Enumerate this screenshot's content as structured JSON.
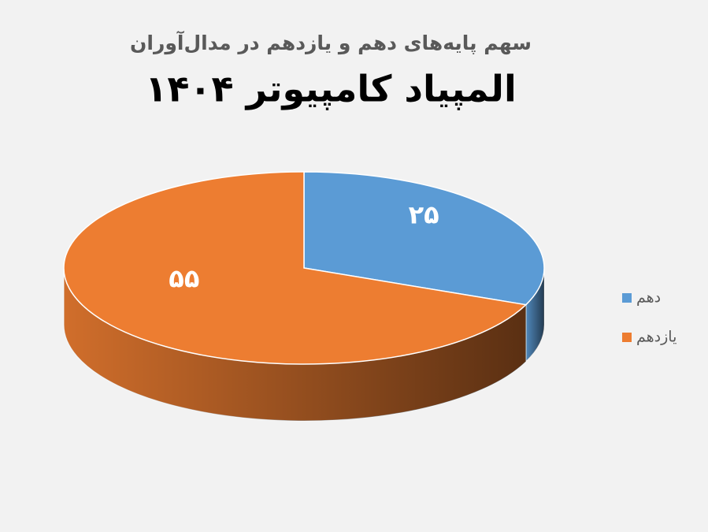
{
  "chart_data": {
    "type": "pie",
    "subtitle": "سهم پایه‌های دهم و یازدهم در مدال‌آوران",
    "title": "المپیاد کامپیوتر ۱۴۰۴",
    "categories": [
      "دهم",
      "یازدهم"
    ],
    "values": [
      25,
      55
    ],
    "value_labels": [
      "۲۵",
      "۵۵"
    ],
    "colors": [
      "#5b9bd5",
      "#ed7d31"
    ],
    "legend": "right"
  }
}
